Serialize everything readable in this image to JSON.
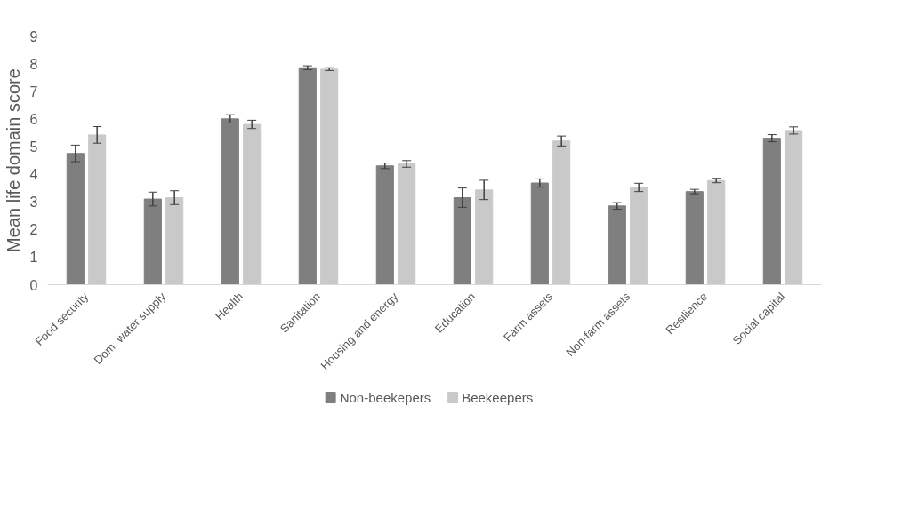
{
  "chart_data": {
    "type": "bar",
    "ylabel": "Mean life domain score",
    "categories": [
      "Food security",
      "Dom. water supply",
      "Health",
      "Sanitation",
      "Housing and energy",
      "Education",
      "Farm assets",
      "Non-farm assets",
      "Resilience",
      "Social capital"
    ],
    "series": [
      {
        "name": "Non-beekepers",
        "color": "#7f7f7f",
        "values": [
          4.75,
          3.1,
          6.0,
          7.85,
          4.3,
          3.15,
          3.68,
          2.85,
          3.37,
          5.3
        ],
        "errors": [
          0.3,
          0.25,
          0.15,
          0.07,
          0.1,
          0.35,
          0.15,
          0.12,
          0.08,
          0.13
        ]
      },
      {
        "name": "Beekeepers",
        "color": "#c9c9c9",
        "values": [
          5.42,
          3.15,
          5.8,
          7.8,
          4.37,
          3.43,
          5.2,
          3.52,
          3.77,
          5.58
        ],
        "errors": [
          0.3,
          0.25,
          0.15,
          0.05,
          0.12,
          0.35,
          0.18,
          0.15,
          0.08,
          0.13
        ]
      }
    ],
    "ylim": [
      0,
      9
    ],
    "yticks": [
      0,
      1,
      2,
      3,
      4,
      5,
      6,
      7,
      8,
      9
    ],
    "grid": false,
    "legend": "bottom"
  }
}
